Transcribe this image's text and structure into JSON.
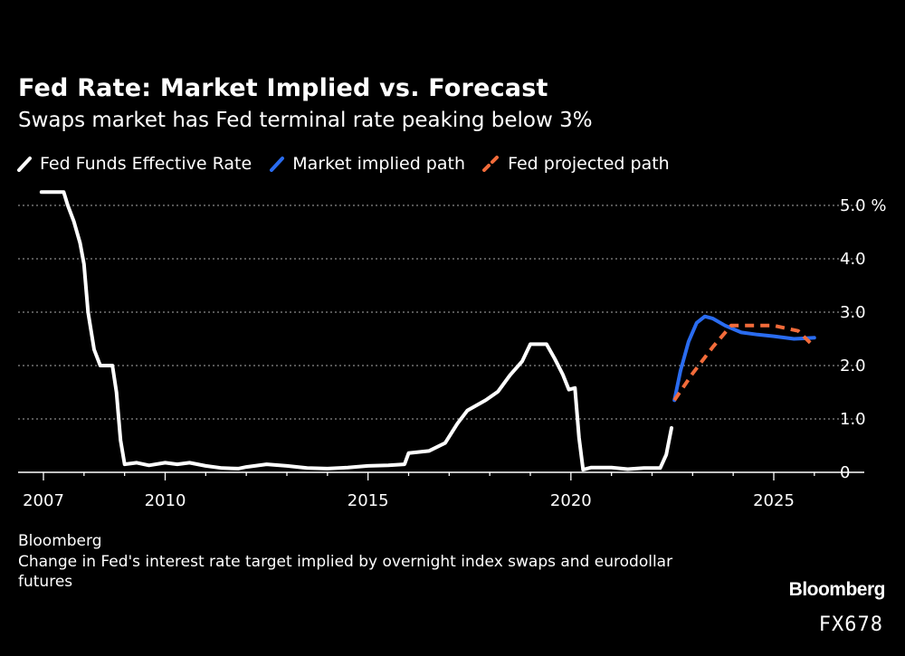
{
  "chart_data": {
    "type": "line",
    "title": "Fed Rate: Market Implied vs. Forecast",
    "subtitle": "Swaps market has Fed terminal rate peaking below 3%",
    "ylabel": "%",
    "ylim": [
      -0.2,
      5.0
    ],
    "xlim": [
      2007.0,
      2026.7
    ],
    "yticks": [
      {
        "value": 5.0,
        "label": "5.0 %"
      },
      {
        "value": 4.0,
        "label": "4.0"
      },
      {
        "value": 3.0,
        "label": "3.0"
      },
      {
        "value": 2.0,
        "label": "2.0"
      },
      {
        "value": 1.0,
        "label": "1.0"
      },
      {
        "value": 0.0,
        "label": "0"
      }
    ],
    "xticks": [
      {
        "value": 2007.0,
        "label": "2007"
      },
      {
        "value": 2010.0,
        "label": "2010"
      },
      {
        "value": 2015.0,
        "label": "2015"
      },
      {
        "value": 2020.0,
        "label": "2020"
      },
      {
        "value": 2025.0,
        "label": "2025"
      }
    ],
    "grid": true,
    "legend_position": "top-left",
    "series": [
      {
        "name": "Fed Funds Effective Rate",
        "color": "#ffffff",
        "style": "solid",
        "points": [
          [
            2006.95,
            5.25
          ],
          [
            2007.5,
            5.25
          ],
          [
            2007.6,
            5.0
          ],
          [
            2007.75,
            4.7
          ],
          [
            2007.9,
            4.3
          ],
          [
            2008.0,
            3.9
          ],
          [
            2008.1,
            3.0
          ],
          [
            2008.25,
            2.3
          ],
          [
            2008.4,
            2.0
          ],
          [
            2008.7,
            2.0
          ],
          [
            2008.8,
            1.5
          ],
          [
            2008.9,
            0.6
          ],
          [
            2009.0,
            0.15
          ],
          [
            2009.3,
            0.18
          ],
          [
            2009.6,
            0.13
          ],
          [
            2010.0,
            0.18
          ],
          [
            2010.3,
            0.15
          ],
          [
            2010.6,
            0.18
          ],
          [
            2011.0,
            0.12
          ],
          [
            2011.4,
            0.08
          ],
          [
            2011.8,
            0.07
          ],
          [
            2012.0,
            0.1
          ],
          [
            2012.5,
            0.15
          ],
          [
            2013.0,
            0.12
          ],
          [
            2013.5,
            0.08
          ],
          [
            2014.0,
            0.07
          ],
          [
            2014.5,
            0.09
          ],
          [
            2015.0,
            0.12
          ],
          [
            2015.5,
            0.13
          ],
          [
            2015.9,
            0.15
          ],
          [
            2016.0,
            0.36
          ],
          [
            2016.5,
            0.4
          ],
          [
            2016.9,
            0.55
          ],
          [
            2017.2,
            0.91
          ],
          [
            2017.45,
            1.16
          ],
          [
            2017.9,
            1.35
          ],
          [
            2018.2,
            1.51
          ],
          [
            2018.5,
            1.82
          ],
          [
            2018.8,
            2.08
          ],
          [
            2019.0,
            2.4
          ],
          [
            2019.4,
            2.4
          ],
          [
            2019.6,
            2.13
          ],
          [
            2019.8,
            1.83
          ],
          [
            2019.95,
            1.55
          ],
          [
            2020.1,
            1.58
          ],
          [
            2020.2,
            0.65
          ],
          [
            2020.3,
            0.05
          ],
          [
            2020.5,
            0.09
          ],
          [
            2020.8,
            0.09
          ],
          [
            2021.0,
            0.09
          ],
          [
            2021.4,
            0.06
          ],
          [
            2021.8,
            0.08
          ],
          [
            2022.0,
            0.08
          ],
          [
            2022.2,
            0.08
          ],
          [
            2022.35,
            0.33
          ],
          [
            2022.48,
            0.83
          ]
        ]
      },
      {
        "name": "Market implied path",
        "color": "#2a6cf0",
        "style": "solid",
        "points": [
          [
            2022.55,
            1.35
          ],
          [
            2022.7,
            1.9
          ],
          [
            2022.9,
            2.45
          ],
          [
            2023.1,
            2.8
          ],
          [
            2023.3,
            2.92
          ],
          [
            2023.5,
            2.88
          ],
          [
            2023.8,
            2.75
          ],
          [
            2024.2,
            2.62
          ],
          [
            2024.6,
            2.58
          ],
          [
            2025.0,
            2.55
          ],
          [
            2025.5,
            2.5
          ],
          [
            2026.0,
            2.52
          ]
        ]
      },
      {
        "name": "Fed projected path",
        "color": "#f26b3a",
        "style": "dashed",
        "points": [
          [
            2022.55,
            1.35
          ],
          [
            2023.0,
            1.85
          ],
          [
            2023.5,
            2.35
          ],
          [
            2023.95,
            2.75
          ],
          [
            2025.0,
            2.75
          ],
          [
            2025.6,
            2.65
          ],
          [
            2026.0,
            2.35
          ]
        ]
      }
    ]
  },
  "footer": {
    "source": "Bloomberg",
    "note": "Change in Fed's interest rate target implied by overnight index swaps and eurodollar futures",
    "brand": "Bloomberg",
    "code": "FX678"
  }
}
